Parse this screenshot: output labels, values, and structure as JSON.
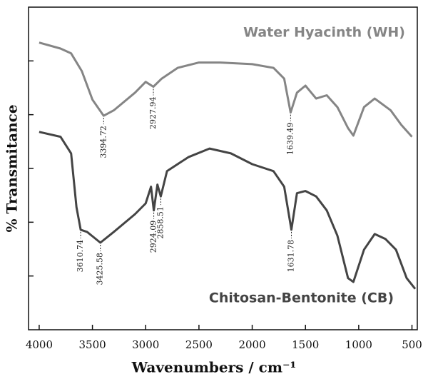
{
  "chart_data": {
    "type": "line",
    "x_label": "Wavenumbers / cm⁻¹",
    "y_label": "% Transmitance",
    "xlim": [
      4100,
      450
    ],
    "ylim": [
      0,
      6
    ],
    "xticks": [
      4000,
      3500,
      3000,
      2500,
      2000,
      1500,
      1000,
      500
    ],
    "yticks": [
      1,
      2,
      3,
      4,
      5
    ],
    "series": [
      {
        "name": "Water Hyacinth (WH)",
        "color": "#858585",
        "x": [
          4000,
          3800,
          3700,
          3600,
          3500,
          3394.72,
          3300,
          3100,
          3000,
          2927.94,
          2850,
          2700,
          2500,
          2300,
          2000,
          1800,
          1700,
          1639.49,
          1580,
          1500,
          1400,
          1300,
          1200,
          1100,
          1050,
          950,
          850,
          700,
          600,
          500
        ],
        "values": [
          5.34,
          5.23,
          5.14,
          4.81,
          4.28,
          3.98,
          4.08,
          4.41,
          4.61,
          4.52,
          4.67,
          4.87,
          4.97,
          4.97,
          4.94,
          4.87,
          4.67,
          4.04,
          4.41,
          4.54,
          4.3,
          4.36,
          4.14,
          3.75,
          3.61,
          4.14,
          4.3,
          4.08,
          3.81,
          3.59
        ]
      },
      {
        "name": "Chitosan-Bentonite (CB)",
        "color": "#444444",
        "x": [
          4000,
          3800,
          3700,
          3650,
          3610.74,
          3550,
          3425.58,
          3300,
          3100,
          3000,
          2950,
          2924.09,
          2890,
          2858.51,
          2800,
          2600,
          2400,
          2200,
          2000,
          1800,
          1700,
          1631.78,
          1580,
          1500,
          1400,
          1300,
          1200,
          1100,
          1050,
          950,
          850,
          750,
          650,
          550,
          470
        ],
        "values": [
          3.68,
          3.59,
          3.28,
          2.28,
          1.86,
          1.82,
          1.62,
          1.82,
          2.15,
          2.35,
          2.66,
          2.22,
          2.7,
          2.48,
          2.95,
          3.21,
          3.37,
          3.28,
          3.08,
          2.95,
          2.66,
          1.86,
          2.54,
          2.58,
          2.48,
          2.22,
          1.75,
          0.96,
          0.89,
          1.49,
          1.78,
          1.69,
          1.49,
          0.96,
          0.76
        ]
      }
    ],
    "annotations": [
      {
        "label": "3394.72",
        "x": 3394.72,
        "y": 3.98
      },
      {
        "label": "2927.94",
        "x": 2927.94,
        "y": 4.52
      },
      {
        "label": "1639.49",
        "x": 1639.49,
        "y": 4.04
      },
      {
        "label": "3610.74",
        "x": 3610.74,
        "y": 1.86
      },
      {
        "label": "3425.58",
        "x": 3425.58,
        "y": 1.62
      },
      {
        "label": "2924.09",
        "x": 2924.09,
        "y": 2.22
      },
      {
        "label": "2858.51",
        "x": 2858.51,
        "y": 2.48
      },
      {
        "label": "1631.78",
        "x": 1631.78,
        "y": 1.86
      }
    ]
  }
}
